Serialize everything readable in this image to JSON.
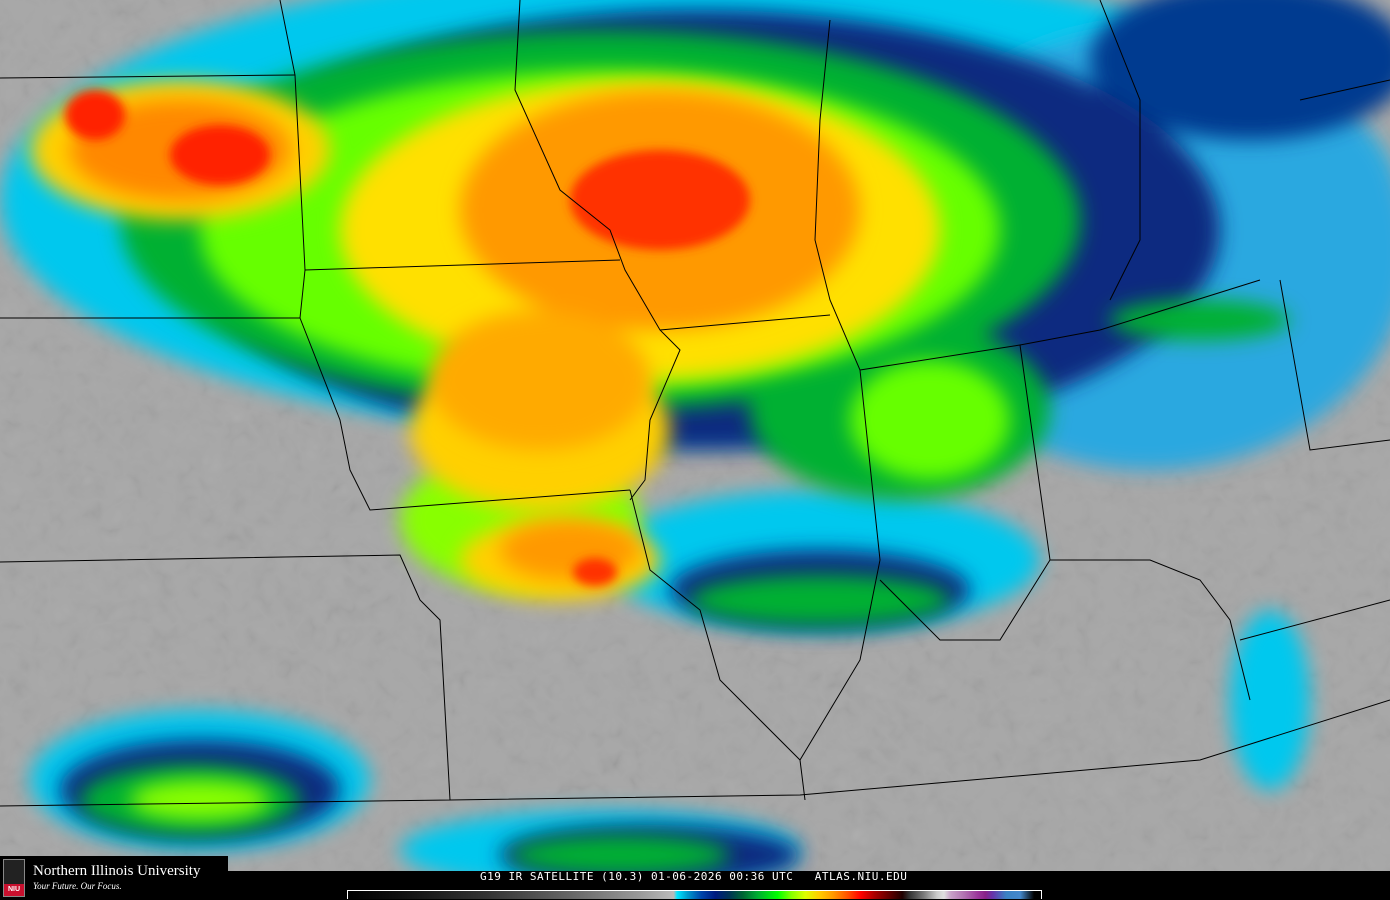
{
  "map": {
    "type": "infrared satellite image",
    "background_color": "#a8a8a8",
    "boundary_color": "#000000"
  },
  "caption": {
    "text": "G19 IR SATELLITE (10.3) 01-06-2026 00:36 UTC   ATLAS.NIU.EDU"
  },
  "logo": {
    "name": "Northern Illinois University",
    "tagline": "Your Future. Our Focus.",
    "badge": "NIU",
    "accent": "#c8102e"
  },
  "color_scale": {
    "colors": [
      "#000000",
      "#666666",
      "#bbbbbb",
      "#00e5ff",
      "#0044aa",
      "#001a80",
      "#006633",
      "#00ff00",
      "#ddff00",
      "#ffcc00",
      "#ff5500",
      "#ff0000",
      "#660000",
      "#777777",
      "#e0e0e0",
      "#b070b0",
      "#882288",
      "#4488cc"
    ]
  }
}
